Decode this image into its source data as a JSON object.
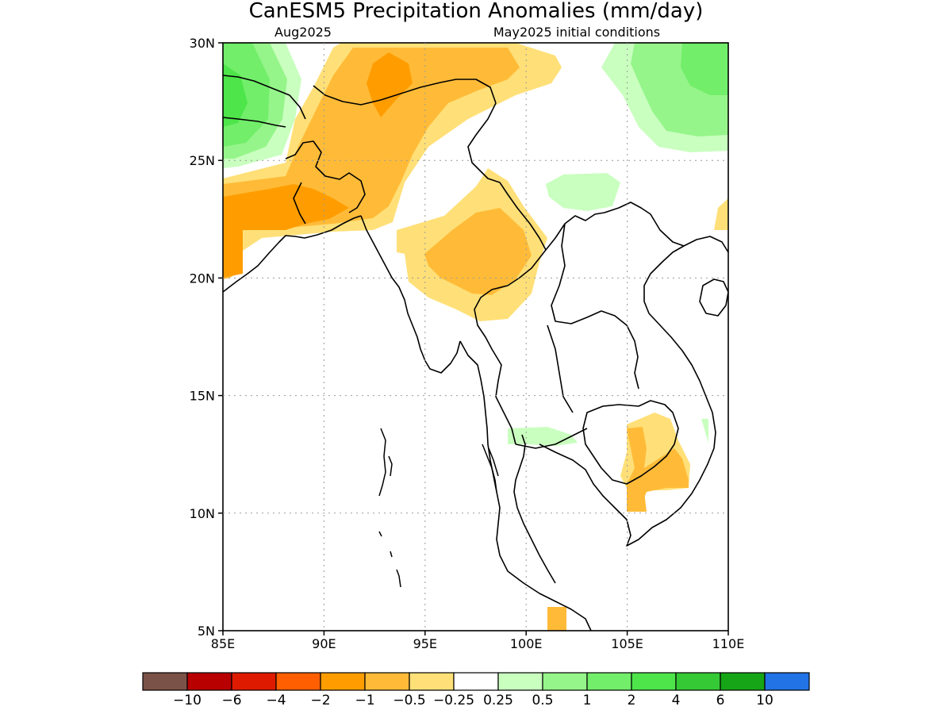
{
  "title": "CanESM5 Precipitation Anomalies (mm/day)",
  "subtitle_left": "Aug2025",
  "subtitle_right": "May2025 initial conditions",
  "y_ticks": [
    "30N",
    "25N",
    "20N",
    "15N",
    "10N",
    "5N"
  ],
  "x_ticks": [
    "85E",
    "90E",
    "95E",
    "100E",
    "105E",
    "110E"
  ],
  "colorbar": {
    "colors": [
      "#7b5247",
      "#b80000",
      "#de1b00",
      "#ff5f00",
      "#ff9d00",
      "#ffbb38",
      "#ffe078",
      "#ffffff",
      "#c9ffbf",
      "#95f58a",
      "#72ee6a",
      "#4de54a",
      "#35c935",
      "#16a516",
      "#2273e6"
    ],
    "labels": [
      "−10",
      "−6",
      "−4",
      "−2",
      "−1",
      "−0.5",
      "−0.25",
      "0.25",
      "0.5",
      "1",
      "2",
      "4",
      "6",
      "10"
    ]
  }
}
